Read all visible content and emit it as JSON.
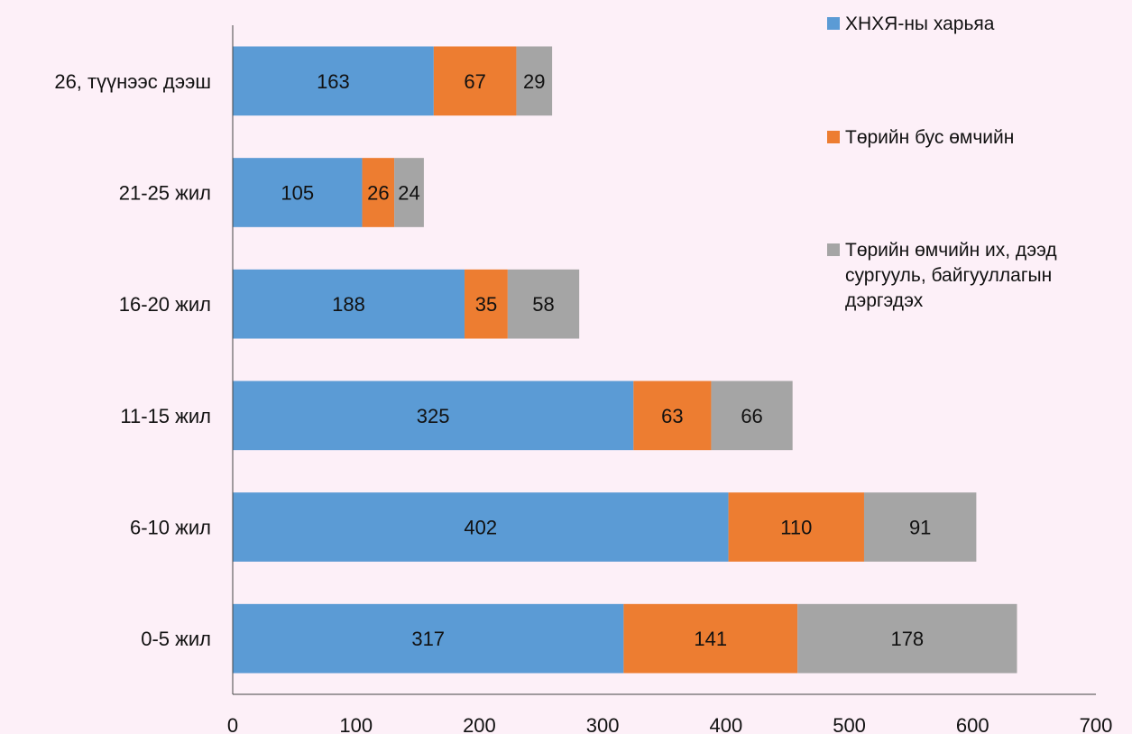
{
  "chart_data": {
    "type": "bar",
    "orientation": "horizontal",
    "stacked": true,
    "categories": [
      "0-5 жил",
      "6-10 жил",
      "11-15 жил",
      "16-20 жил",
      "21-25 жил",
      "26, түүнээс дээш"
    ],
    "series": [
      {
        "name": "ХНХЯ-ны харьяа",
        "color": "#5b9bd5",
        "values": [
          317,
          402,
          325,
          188,
          105,
          163
        ]
      },
      {
        "name": "Төрийн бус өмчийн",
        "color": "#ed7d31",
        "values": [
          141,
          110,
          63,
          35,
          26,
          67
        ]
      },
      {
        "name": "Төрийн өмчийн их, дээд сургууль, байгууллагын дэргэдэх",
        "color": "#a5a5a5",
        "values": [
          178,
          91,
          66,
          58,
          24,
          29
        ]
      }
    ],
    "xlim": [
      0,
      700
    ],
    "x_ticks": [
      0,
      100,
      200,
      300,
      400,
      500,
      600,
      700
    ],
    "data_labels": true,
    "grid": false,
    "legend_position": "top-right"
  }
}
